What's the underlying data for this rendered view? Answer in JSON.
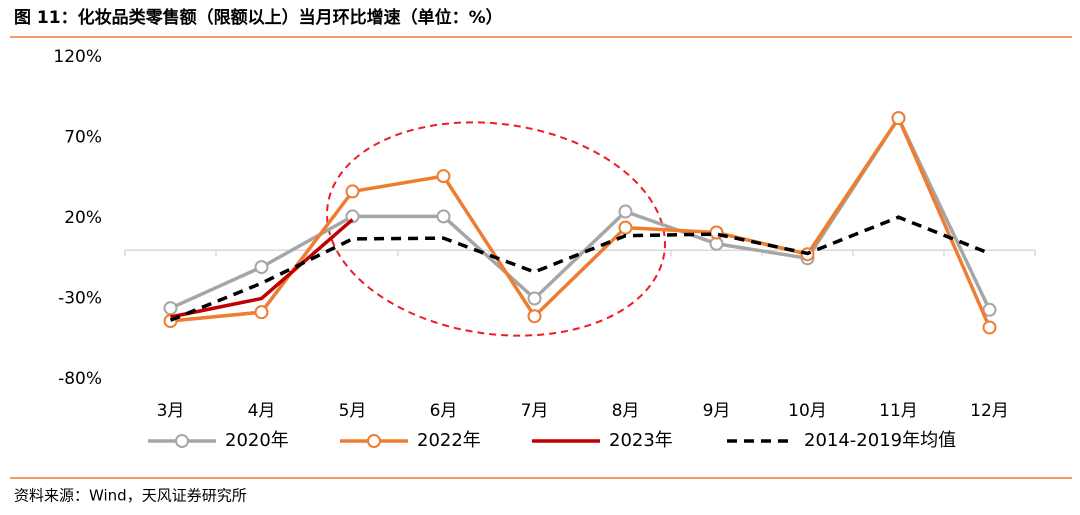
{
  "chart_data": {
    "type": "line",
    "title": "图 11：化妆品类零售额（限额以上）当月环比增速（单位：%）",
    "source": "资料来源：Wind，天风证券研究所",
    "categories": [
      "3月",
      "4月",
      "5月",
      "6月",
      "7月",
      "8月",
      "9月",
      "10月",
      "11月",
      "12月"
    ],
    "series": [
      {
        "name": "2020年",
        "color": "#a6a6a6",
        "marker": true,
        "dash": false,
        "values": [
          -36,
          -10.5,
          21,
          21,
          -30,
          24,
          4,
          -5,
          82,
          -37
        ]
      },
      {
        "name": "2022年",
        "color": "#ed7d31",
        "marker": true,
        "dash": false,
        "values": [
          -44,
          -38.5,
          36.5,
          46,
          -41,
          14,
          11,
          -2.5,
          82,
          -48
        ]
      },
      {
        "name": "2023年",
        "color": "#c00000",
        "marker": false,
        "dash": false,
        "values": [
          -41.5,
          -30,
          19,
          null,
          null,
          null,
          null,
          null,
          null,
          null
        ]
      },
      {
        "name": "2014-2019年均值",
        "color": "#000000",
        "marker": false,
        "dash": true,
        "values": [
          -43.5,
          -20.5,
          7,
          7.5,
          -13.5,
          9,
          10,
          -2,
          20.5,
          -2
        ]
      }
    ],
    "ylim": [
      -80,
      120
    ],
    "yticks": [
      {
        "value": -80,
        "label": "-80%"
      },
      {
        "value": -30,
        "label": "-30%"
      },
      {
        "value": 20,
        "label": "20%"
      },
      {
        "value": 70,
        "label": "70%"
      },
      {
        "value": 120,
        "label": "120%"
      }
    ],
    "grid": false
  }
}
